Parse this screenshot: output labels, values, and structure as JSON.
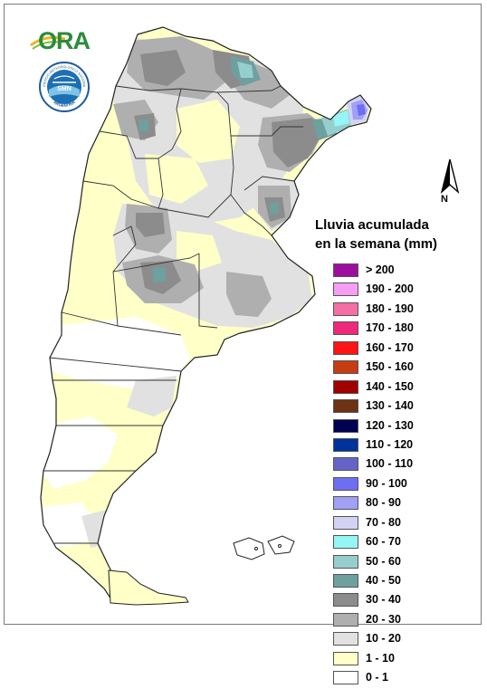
{
  "branding": {
    "ora_text": "ORA",
    "smn_ring_text": "SERVICIO METEOROLOGICO NACIONAL",
    "smn_country_text": "ARGENTINA",
    "smn_center_text": "SMN"
  },
  "north_arrow": {
    "label": "N"
  },
  "legend": {
    "title_line1": "Lluvia acumulada",
    "title_line2": "en la semana (mm)",
    "items": [
      {
        "label": "> 200",
        "color": "#9e0e9e"
      },
      {
        "label": "190 - 200",
        "color": "#f59ef5"
      },
      {
        "label": "180 - 190",
        "color": "#f56ea6"
      },
      {
        "label": "170 - 180",
        "color": "#f0287a"
      },
      {
        "label": "160 - 170",
        "color": "#ff1414"
      },
      {
        "label": "150 - 160",
        "color": "#c83c14"
      },
      {
        "label": "140 - 150",
        "color": "#a00000"
      },
      {
        "label": "130 - 140",
        "color": "#6e3214"
      },
      {
        "label": "120 - 130",
        "color": "#000050"
      },
      {
        "label": "110 - 120",
        "color": "#00329b"
      },
      {
        "label": "100 - 110",
        "color": "#6464c8"
      },
      {
        "label": "90 - 100",
        "color": "#6e6ef0"
      },
      {
        "label": "80 - 90",
        "color": "#a0a0f5"
      },
      {
        "label": "70 - 80",
        "color": "#d2d2f5"
      },
      {
        "label": "60 - 70",
        "color": "#96f5f5"
      },
      {
        "label": "50 - 60",
        "color": "#96cdcd"
      },
      {
        "label": "40 - 50",
        "color": "#6ea0a0"
      },
      {
        "label": "30 - 40",
        "color": "#8c8c8c"
      },
      {
        "label": "20 - 30",
        "color": "#afafaf"
      },
      {
        "label": "10 - 20",
        "color": "#e1e1e1"
      },
      {
        "label": "1 - 10",
        "color": "#ffffc8"
      },
      {
        "label": "0 - 1",
        "color": "#ffffff"
      }
    ]
  }
}
